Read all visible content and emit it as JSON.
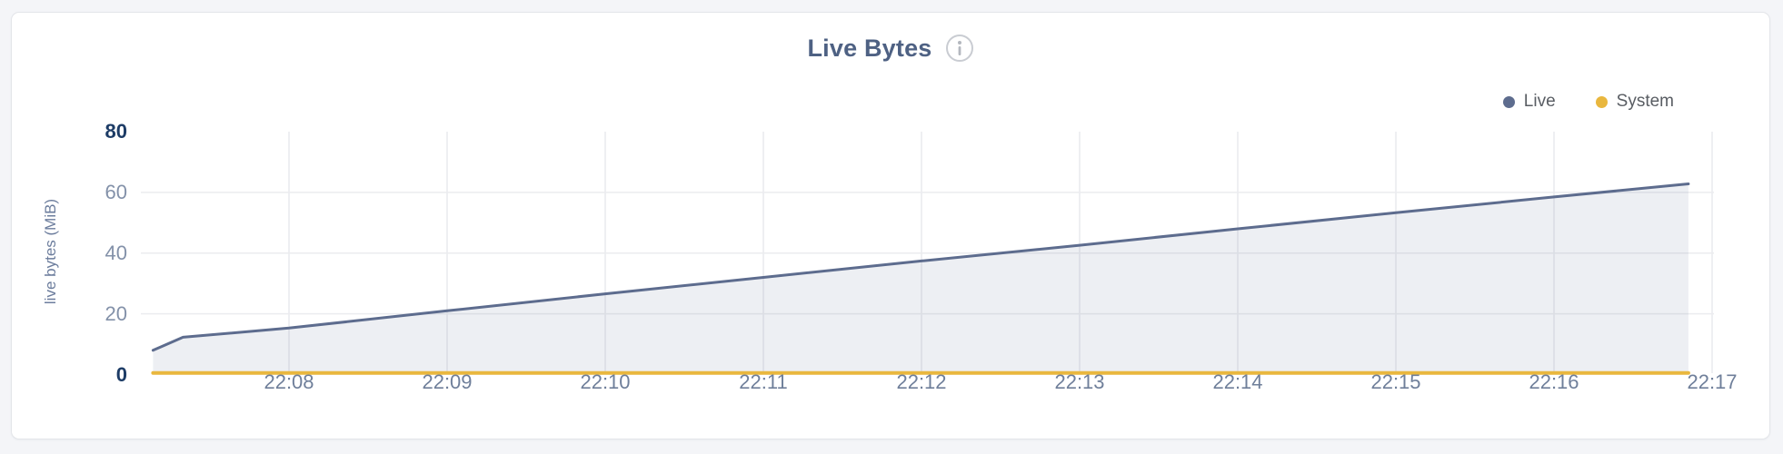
{
  "page": {
    "background": "#f4f5f8"
  },
  "card": {
    "background": "#ffffff",
    "border_color": "#e3e5e9"
  },
  "header": {
    "title": "Live Bytes",
    "info_icon": "info-circle"
  },
  "legend": {
    "items": [
      {
        "label": "Live",
        "color": "#5d6c8e"
      },
      {
        "label": "System",
        "color": "#e9b73e"
      }
    ]
  },
  "chart_data": {
    "type": "area",
    "title": "Live Bytes",
    "ylabel": "live bytes (MiB)",
    "xlabel": "",
    "ylim": [
      0,
      80
    ],
    "xlim_minutes_after_2200": [
      7.07,
      17.12
    ],
    "grid": true,
    "legend_position": "top-right",
    "colors": {
      "title": "#4e6183",
      "tick_strong": "#1d3c66",
      "tick_weak": "#8391a9",
      "x_tick": "#6f7f9a",
      "ylabel": "#6b7c9c",
      "grid_v": "#e9eaee",
      "grid_h": "#ebecef"
    },
    "y_ticks": [
      {
        "label": "80",
        "value": 80,
        "strong": true
      },
      {
        "label": "60",
        "value": 60,
        "strong": false
      },
      {
        "label": "40",
        "value": 40,
        "strong": false
      },
      {
        "label": "20",
        "value": 20,
        "strong": false
      },
      {
        "label": "0",
        "value": 0,
        "strong": true
      }
    ],
    "x_ticks": [
      {
        "label": "22:08",
        "minute": 8
      },
      {
        "label": "22:09",
        "minute": 9
      },
      {
        "label": "22:10",
        "minute": 10
      },
      {
        "label": "22:11",
        "minute": 11
      },
      {
        "label": "22:12",
        "minute": 12
      },
      {
        "label": "22:13",
        "minute": 13
      },
      {
        "label": "22:14",
        "minute": 14
      },
      {
        "label": "22:15",
        "minute": 15
      },
      {
        "label": "22:16",
        "minute": 16
      },
      {
        "label": "22:17",
        "minute": 17
      }
    ],
    "series": [
      {
        "name": "Live",
        "color": "#5d6c8e",
        "fill": "rgba(93,108,142,0.11)",
        "line_width": 3,
        "points_minute_mib": [
          [
            7.14,
            8.0
          ],
          [
            7.33,
            12.3
          ],
          [
            8.0,
            15.3
          ],
          [
            9.0,
            21.0
          ],
          [
            10.0,
            26.6
          ],
          [
            11.0,
            32.0
          ],
          [
            12.0,
            37.4
          ],
          [
            13.0,
            42.6
          ],
          [
            14.0,
            48.0
          ],
          [
            15.0,
            53.3
          ],
          [
            16.0,
            58.5
          ],
          [
            16.85,
            62.8
          ]
        ]
      },
      {
        "name": "System",
        "color": "#e9b73e",
        "fill": null,
        "line_width": 4,
        "points_minute_mib": [
          [
            7.14,
            0.5
          ],
          [
            16.85,
            0.5
          ]
        ]
      }
    ]
  }
}
